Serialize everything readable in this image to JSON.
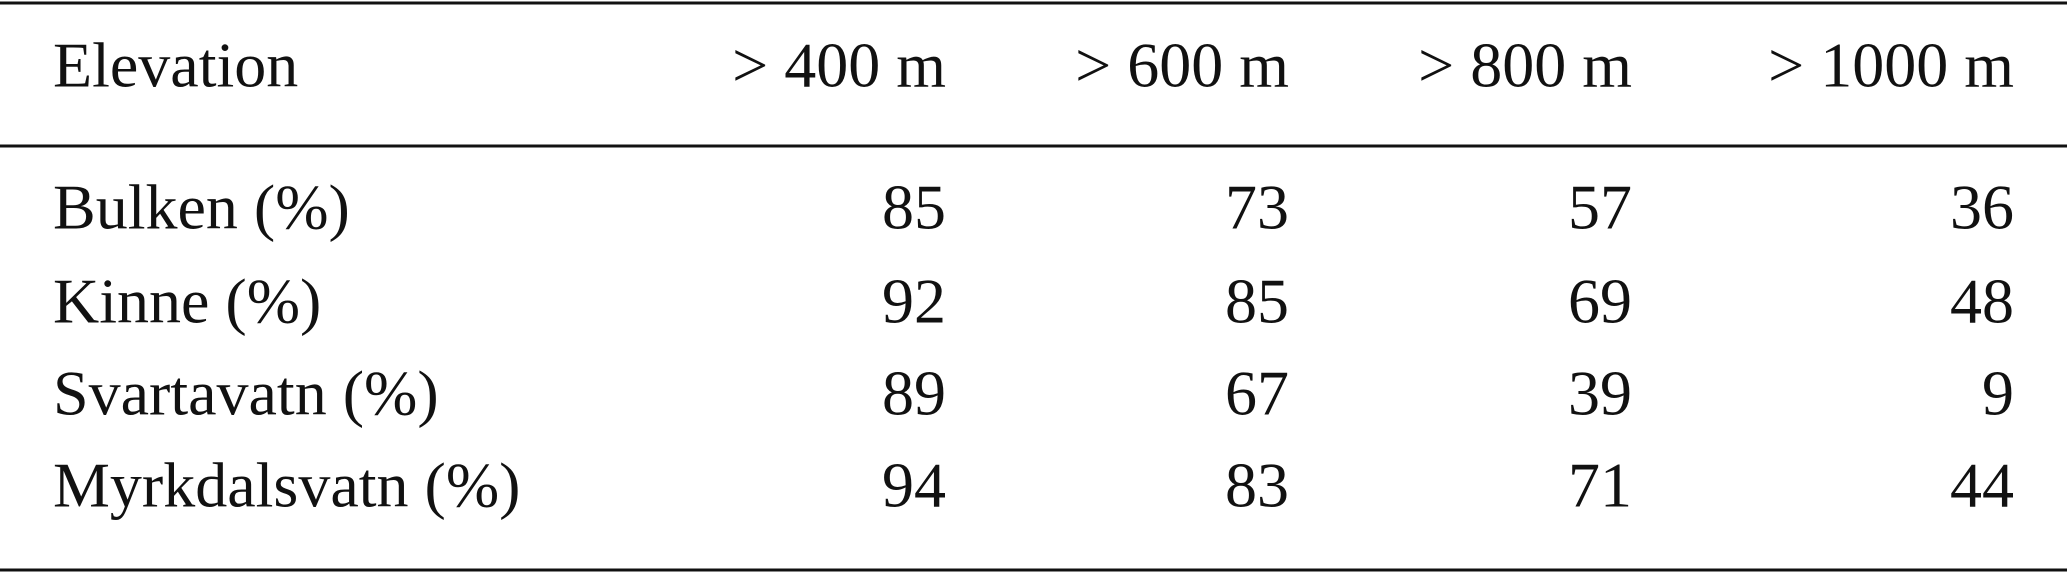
{
  "table": {
    "header": [
      "Elevation",
      "> 400 m",
      "> 600 m",
      "> 800 m",
      "> 1000 m"
    ],
    "rows": [
      [
        "Bulken (%)",
        85,
        73,
        57,
        36
      ],
      [
        "Kinne (%)",
        92,
        85,
        69,
        48
      ],
      [
        "Svartavatn (%)",
        89,
        67,
        39,
        9
      ],
      [
        "Myrkdalsvatn (%)",
        94,
        83,
        71,
        44
      ]
    ]
  }
}
